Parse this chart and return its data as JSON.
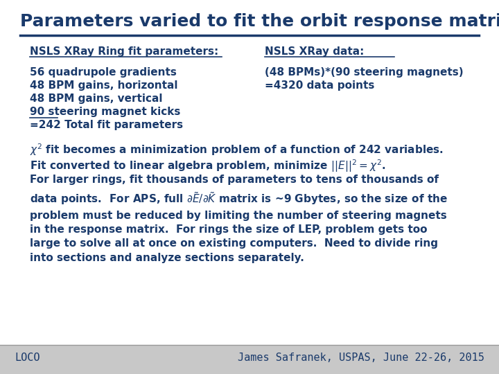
{
  "background_color": "#d0d0d0",
  "content_bg": "#ffffff",
  "text_color": "#1a3a6b",
  "title": "Parameters varied to fit the orbit response matrix",
  "title_fontsize": 18,
  "footer_left": "LOCO",
  "footer_right": "James Safranek, USPAS, June 22-26, 2015",
  "footer_fontsize": 11,
  "col1_header": "NSLS XRay Ring fit parameters:",
  "col2_header": "NSLS XRay data:",
  "col1_items": [
    "56 quadrupole gradients",
    "48 BPM gains, horizontal",
    "48 BPM gains, vertical",
    "90 steering magnet kicks",
    "=242 Total fit parameters"
  ],
  "col1_underline": [
    false,
    false,
    false,
    true,
    false
  ],
  "col2_items": [
    "(48 BPMs)*(90 steering magnets)",
    "=4320 data points"
  ]
}
